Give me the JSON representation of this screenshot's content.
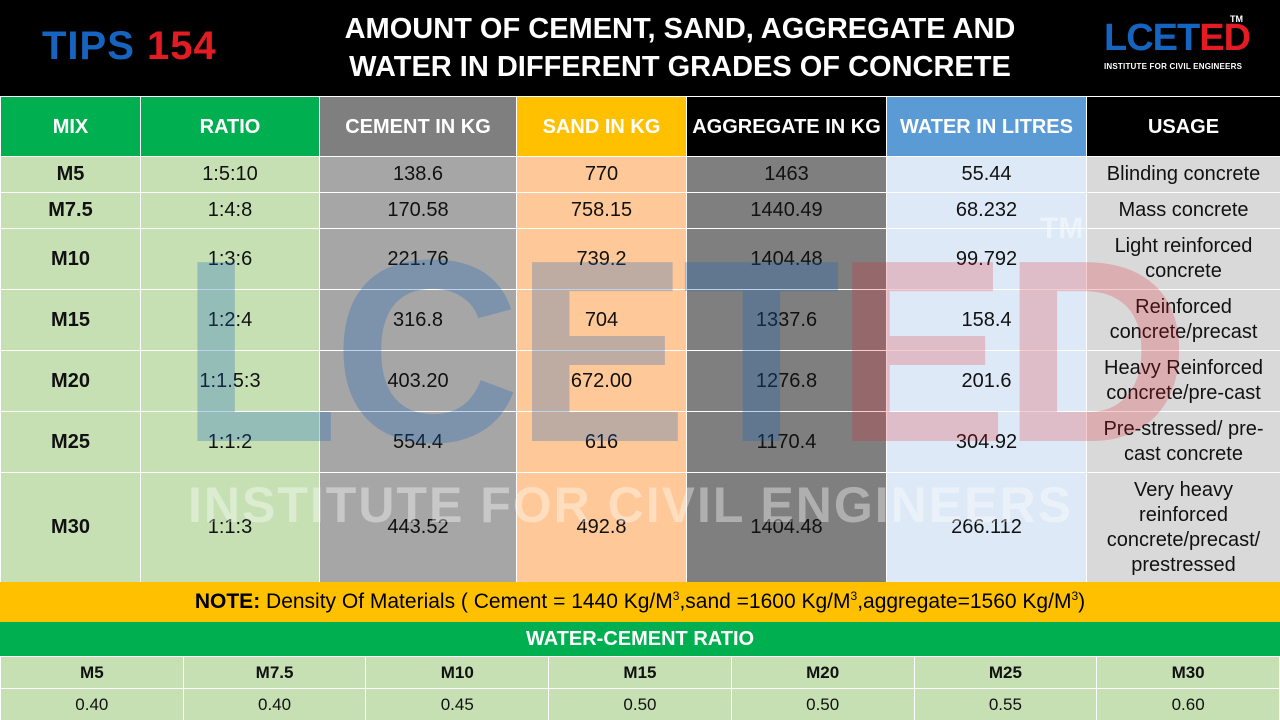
{
  "header": {
    "tips_word": "TIPS",
    "tips_number": "154",
    "title_line1": "AMOUNT OF CEMENT, SAND, AGGREGATE AND",
    "title_line2": "WATER IN DIFFERENT GRADES OF CONCRETE",
    "logo_lc": "LCET",
    "logo_ed": "ED",
    "logo_tm": "TM",
    "logo_subtitle": "INSTITUTE FOR CIVIL ENGINEERS"
  },
  "table": {
    "headers": [
      "MIX",
      "RATIO",
      "CEMENT IN KG",
      "SAND IN KG",
      "AGGREGATE IN KG",
      "WATER IN LITRES",
      "USAGE"
    ],
    "rows": [
      {
        "mix": "M5",
        "ratio": "1:5:10",
        "cement": "138.6",
        "sand": "770",
        "aggregate": "1463",
        "water": "55.44",
        "usage": "Blinding concrete"
      },
      {
        "mix": "M7.5",
        "ratio": "1:4:8",
        "cement": "170.58",
        "sand": "758.15",
        "aggregate": "1440.49",
        "water": "68.232",
        "usage": "Mass concrete"
      },
      {
        "mix": "M10",
        "ratio": "1:3:6",
        "cement": "221.76",
        "sand": "739.2",
        "aggregate": "1404.48",
        "water": "99.792",
        "usage": "Light reinforced concrete"
      },
      {
        "mix": "M15",
        "ratio": "1:2:4",
        "cement": "316.8",
        "sand": "704",
        "aggregate": "1337.6",
        "water": "158.4",
        "usage": "Reinforced concrete/precast"
      },
      {
        "mix": "M20",
        "ratio": "1:1.5:3",
        "cement": "403.20",
        "sand": "672.00",
        "aggregate": "1276.8",
        "water": "201.6",
        "usage": "Heavy Reinforced concrete/pre-cast"
      },
      {
        "mix": "M25",
        "ratio": "1:1:2",
        "cement": "554.4",
        "sand": "616",
        "aggregate": "1170.4",
        "water": "304.92",
        "usage": "Pre-stressed/ pre-cast concrete"
      },
      {
        "mix": "M30",
        "ratio": "1:1:3",
        "cement": "443.52",
        "sand": "492.8",
        "aggregate": "1404.48",
        "water": "266.112",
        "usage": "Very heavy reinforced concrete/precast/ prestressed"
      }
    ]
  },
  "watermark": {
    "big_lc": "LCET",
    "big_ed": "ED",
    "tm": "TM",
    "subtitle": "INSTITUTE FOR CIVIL ENGINEERS"
  },
  "note": {
    "label": "NOTE:",
    "text_a": " Density Of Materials ( Cement = 1440 Kg/M",
    "sup1": "3",
    "text_b": ",sand =1600 Kg/M",
    "sup2": "3",
    "text_c": ",aggregate=1560 Kg/M",
    "sup3": "3",
    "text_d": ")"
  },
  "wc": {
    "title": "WATER-CEMENT RATIO",
    "grades": [
      "M5",
      "M7.5",
      "M10",
      "M15",
      "M20",
      "M25",
      "M30"
    ],
    "values": [
      "0.40",
      "0.40",
      "0.45",
      "0.50",
      "0.50",
      "0.55",
      "0.60"
    ]
  },
  "colors": {
    "green": "#00b050",
    "light_green": "#c6e0b4",
    "gray_header": "#7f7f7f",
    "cement_cell": "#a6a6a6",
    "sand_header": "#ffc000",
    "sand_cell": "#ffc898",
    "water_header": "#5b9bd5",
    "water_cell": "#dde9f6",
    "usage_cell": "#d9d9d9",
    "brand_blue": "#1565c0",
    "brand_red": "#e31b23"
  }
}
